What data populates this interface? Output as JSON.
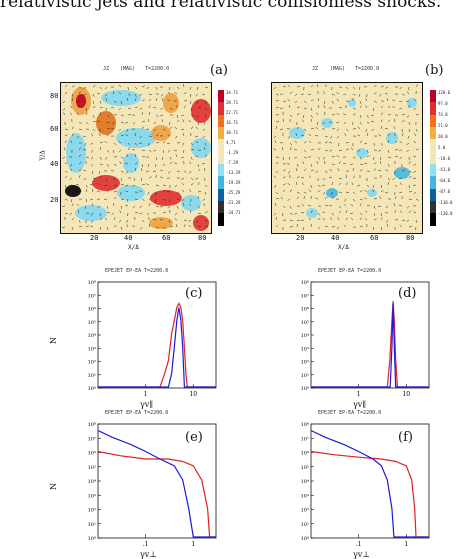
{
  "caption": "relativistic jets and relativistic collisionless shocks.",
  "panels": {
    "a": {
      "tag": "(a)",
      "title_left": "JZ",
      "title_mid": "(MAG)",
      "title_right": "T=2200.0",
      "xlabel": "X/Δ",
      "ylabel": "Y/Δ",
      "xticks": [
        "20",
        "40",
        "60",
        "80"
      ],
      "yticks": [
        "80",
        "60",
        "40",
        "20"
      ],
      "colorbar": [
        "34.71",
        "28.71",
        "22.71",
        "16.71",
        "10.71",
        "4.71",
        "-1.29",
        "-7.29",
        "-13.29",
        "-19.29",
        "-25.29",
        "-31.29",
        "-34.71"
      ]
    },
    "b": {
      "tag": "(b)",
      "title_left": "JZ",
      "title_mid": "(MAG)",
      "title_right": "T=2200.0",
      "xlabel": "X/Δ",
      "ylabel": "Y/Δ",
      "xticks": [
        "20",
        "40",
        "60",
        "80"
      ],
      "yticks": [
        "80",
        "60",
        "40",
        "20"
      ],
      "colorbar": [
        "120.0",
        "97.0",
        "74.0",
        "51.0",
        "28.0",
        "5.0",
        "-18.0",
        "-41.0",
        "-64.0",
        "-87.0",
        "-110.0",
        "-120.0"
      ]
    },
    "c": {
      "tag": "(c)",
      "header": "EPEJET EP-EA    T=2200.0",
      "xlabel": "γv∥",
      "ylabel": "N",
      "xticks": [
        "1",
        "10"
      ],
      "yticks": [
        "10⁸",
        "10⁷",
        "10⁶",
        "10⁵",
        "10⁴",
        "10³",
        "10²",
        "10¹",
        "10⁰"
      ]
    },
    "d": {
      "tag": "(d)",
      "header": "EPEJET EP-EA    T=2200.0",
      "xlabel": "γv∥",
      "ylabel": "N",
      "xticks": [
        "1",
        "10"
      ],
      "yticks": [
        "10⁸",
        "10⁷",
        "10⁶",
        "10⁵",
        "10⁴",
        "10³",
        "10²",
        "10¹",
        "10⁰"
      ]
    },
    "e": {
      "tag": "(e)",
      "header": "EPEJET EP-EA    T=2200.0",
      "xlabel": "γv⊥",
      "ylabel": "N",
      "xticks": [
        ".1",
        "1"
      ],
      "yticks": [
        "10⁸",
        "10⁷",
        "10⁶",
        "10⁵",
        "10⁴",
        "10³",
        "10²",
        "10¹",
        "10⁰"
      ]
    },
    "f": {
      "tag": "(f)",
      "header": "EPEJET EP-EA    T=2200.0",
      "xlabel": "γv⊥",
      "ylabel": "N",
      "xticks": [
        ".1",
        "1"
      ],
      "yticks": [
        "10⁸",
        "10⁷",
        "10⁶",
        "10⁵",
        "10⁴",
        "10³",
        "10²",
        "10¹",
        "10⁰"
      ]
    }
  },
  "colors": {
    "red": "#e02020",
    "blue": "#1a1ae0",
    "peach": "#f5e6b8",
    "cyan": "#7fd7f0",
    "orange": "#f0a040"
  },
  "chart_data": [
    {
      "panel": "c",
      "type": "line",
      "x_scale": "log",
      "xlim": [
        0.1,
        30
      ],
      "ylim": [
        1,
        100000000
      ],
      "y_scale": "log",
      "series": [
        {
          "color": "red",
          "x": [
            0.1,
            1.5,
            2.0,
            2.5,
            3.0,
            3.5,
            4.0,
            4.5,
            5.0,
            5.5,
            6.0,
            6.5,
            7.0,
            7.5,
            30
          ],
          "y": [
            1,
            1,
            1,
            10,
            100,
            10000,
            100000,
            1000000,
            2000000,
            1000000,
            100000,
            1000,
            10,
            1,
            1
          ]
        },
        {
          "color": "blue",
          "x": [
            0.1,
            3.0,
            3.5,
            4.0,
            4.5,
            5.0,
            5.5,
            6.0,
            6.5,
            30
          ],
          "y": [
            1,
            1,
            10,
            1000,
            100000,
            1000000,
            100000,
            1000,
            1,
            1
          ]
        }
      ]
    },
    {
      "panel": "d",
      "type": "line",
      "x_scale": "log",
      "xlim": [
        0.1,
        30
      ],
      "ylim": [
        1,
        100000000
      ],
      "y_scale": "log",
      "series": [
        {
          "color": "red",
          "x": [
            0.1,
            4.0,
            4.5,
            5.0,
            5.3,
            5.6,
            6.0,
            6.5,
            30
          ],
          "y": [
            1,
            1,
            100,
            100000,
            3000000,
            100000,
            100,
            1,
            1
          ]
        },
        {
          "color": "blue",
          "x": [
            0.1,
            4.6,
            5.0,
            5.3,
            5.6,
            6.0,
            30
          ],
          "y": [
            1,
            1,
            1000,
            2000000,
            1000,
            1,
            1
          ]
        }
      ]
    },
    {
      "panel": "e",
      "type": "line",
      "x_scale": "log",
      "xlim": [
        0.01,
        3
      ],
      "ylim": [
        1,
        100000000
      ],
      "y_scale": "log",
      "series": [
        {
          "color": "red",
          "x": [
            0.01,
            0.03,
            0.1,
            0.3,
            0.6,
            1.0,
            1.5,
            2.0,
            2.2,
            2.3,
            3
          ],
          "y": [
            1000000,
            500000,
            300000,
            300000,
            200000,
            100000,
            10000,
            100,
            1,
            1,
            1
          ]
        },
        {
          "color": "blue",
          "x": [
            0.01,
            0.02,
            0.05,
            0.1,
            0.2,
            0.4,
            0.6,
            0.8,
            1.0,
            1.1,
            3
          ],
          "y": [
            30000000,
            10000000,
            3000000,
            1000000,
            300000,
            100000,
            10000,
            100,
            1,
            1,
            1
          ]
        }
      ]
    },
    {
      "panel": "f",
      "type": "line",
      "x_scale": "log",
      "xlim": [
        0.01,
        3
      ],
      "ylim": [
        1,
        100000000
      ],
      "y_scale": "log",
      "series": [
        {
          "color": "red",
          "x": [
            0.01,
            0.03,
            0.1,
            0.3,
            0.6,
            1.0,
            1.3,
            1.5,
            1.6,
            1.7,
            3
          ],
          "y": [
            1000000,
            600000,
            400000,
            300000,
            200000,
            100000,
            10000,
            100,
            1,
            1,
            1
          ]
        },
        {
          "color": "blue",
          "x": [
            0.01,
            0.02,
            0.05,
            0.1,
            0.2,
            0.3,
            0.4,
            0.5,
            0.55,
            0.6,
            3
          ],
          "y": [
            30000000,
            10000000,
            3000000,
            1000000,
            300000,
            100000,
            10000,
            100,
            1,
            1,
            1
          ]
        }
      ]
    }
  ]
}
